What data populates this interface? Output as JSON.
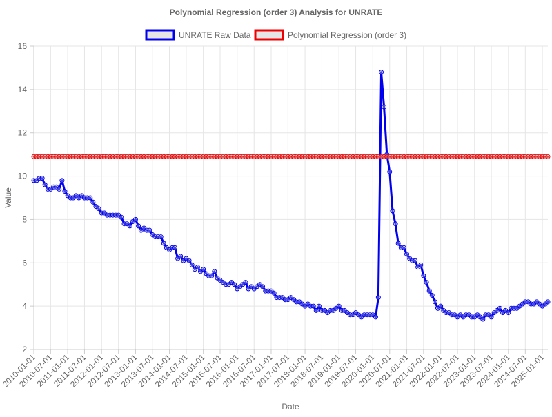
{
  "chart_data": {
    "type": "line",
    "title": "Polynomial Regression (order 3) Analysis for UNRATE",
    "xlabel": "Date",
    "ylabel": "Value",
    "ylim": [
      2,
      16
    ],
    "yticks": [
      2,
      4,
      6,
      8,
      10,
      12,
      14,
      16
    ],
    "grid": true,
    "legend_position": "top-center",
    "x": [
      "2010-01-01",
      "2010-02-01",
      "2010-03-01",
      "2010-04-01",
      "2010-05-01",
      "2010-06-01",
      "2010-07-01",
      "2010-08-01",
      "2010-09-01",
      "2010-10-01",
      "2010-11-01",
      "2010-12-01",
      "2011-01-01",
      "2011-02-01",
      "2011-03-01",
      "2011-04-01",
      "2011-05-01",
      "2011-06-01",
      "2011-07-01",
      "2011-08-01",
      "2011-09-01",
      "2011-10-01",
      "2011-11-01",
      "2011-12-01",
      "2012-01-01",
      "2012-02-01",
      "2012-03-01",
      "2012-04-01",
      "2012-05-01",
      "2012-06-01",
      "2012-07-01",
      "2012-08-01",
      "2012-09-01",
      "2012-10-01",
      "2012-11-01",
      "2012-12-01",
      "2013-01-01",
      "2013-02-01",
      "2013-03-01",
      "2013-04-01",
      "2013-05-01",
      "2013-06-01",
      "2013-07-01",
      "2013-08-01",
      "2013-09-01",
      "2013-10-01",
      "2013-11-01",
      "2013-12-01",
      "2014-01-01",
      "2014-02-01",
      "2014-03-01",
      "2014-04-01",
      "2014-05-01",
      "2014-06-01",
      "2014-07-01",
      "2014-08-01",
      "2014-09-01",
      "2014-10-01",
      "2014-11-01",
      "2014-12-01",
      "2015-01-01",
      "2015-02-01",
      "2015-03-01",
      "2015-04-01",
      "2015-05-01",
      "2015-06-01",
      "2015-07-01",
      "2015-08-01",
      "2015-09-01",
      "2015-10-01",
      "2015-11-01",
      "2015-12-01",
      "2016-01-01",
      "2016-02-01",
      "2016-03-01",
      "2016-04-01",
      "2016-05-01",
      "2016-06-01",
      "2016-07-01",
      "2016-08-01",
      "2016-09-01",
      "2016-10-01",
      "2016-11-01",
      "2016-12-01",
      "2017-01-01",
      "2017-02-01",
      "2017-03-01",
      "2017-04-01",
      "2017-05-01",
      "2017-06-01",
      "2017-07-01",
      "2017-08-01",
      "2017-09-01",
      "2017-10-01",
      "2017-11-01",
      "2017-12-01",
      "2018-01-01",
      "2018-02-01",
      "2018-03-01",
      "2018-04-01",
      "2018-05-01",
      "2018-06-01",
      "2018-07-01",
      "2018-08-01",
      "2018-09-01",
      "2018-10-01",
      "2018-11-01",
      "2018-12-01",
      "2019-01-01",
      "2019-02-01",
      "2019-03-01",
      "2019-04-01",
      "2019-05-01",
      "2019-06-01",
      "2019-07-01",
      "2019-08-01",
      "2019-09-01",
      "2019-10-01",
      "2019-11-01",
      "2019-12-01",
      "2020-01-01",
      "2020-02-01",
      "2020-03-01",
      "2020-04-01",
      "2020-05-01",
      "2020-06-01",
      "2020-07-01",
      "2020-08-01",
      "2020-09-01",
      "2020-10-01",
      "2020-11-01",
      "2020-12-01",
      "2021-01-01",
      "2021-02-01",
      "2021-03-01",
      "2021-04-01",
      "2021-05-01",
      "2021-06-01",
      "2021-07-01",
      "2021-08-01",
      "2021-09-01",
      "2021-10-01",
      "2021-11-01",
      "2021-12-01",
      "2022-01-01",
      "2022-02-01",
      "2022-03-01",
      "2022-04-01",
      "2022-05-01",
      "2022-06-01",
      "2022-07-01",
      "2022-08-01",
      "2022-09-01",
      "2022-10-01",
      "2022-11-01",
      "2022-12-01",
      "2023-01-01",
      "2023-02-01",
      "2023-03-01",
      "2023-04-01",
      "2023-05-01",
      "2023-06-01",
      "2023-07-01",
      "2023-08-01",
      "2023-09-01",
      "2023-10-01",
      "2023-11-01",
      "2023-12-01",
      "2024-01-01",
      "2024-02-01",
      "2024-03-01",
      "2024-04-01",
      "2024-05-01",
      "2024-06-01",
      "2024-07-01",
      "2024-08-01",
      "2024-09-01",
      "2024-10-01",
      "2024-11-01",
      "2024-12-01",
      "2025-01-01",
      "2025-02-01",
      "2025-03-01"
    ],
    "x_tick_labels": [
      "2010-01-01",
      "2010-07-01",
      "2011-01-01",
      "2011-07-01",
      "2012-01-01",
      "2012-07-01",
      "2013-01-01",
      "2013-07-01",
      "2014-01-01",
      "2014-07-01",
      "2015-01-01",
      "2015-07-01",
      "2016-01-01",
      "2016-07-01",
      "2017-01-01",
      "2017-07-01",
      "2018-01-01",
      "2018-07-01",
      "2019-01-01",
      "2019-07-01",
      "2020-01-01",
      "2020-07-01",
      "2021-01-01",
      "2021-07-01",
      "2022-01-01",
      "2022-07-01",
      "2023-01-01",
      "2023-07-01",
      "2024-01-01",
      "2024-07-01",
      "2025-01-01"
    ],
    "series": [
      {
        "name": "UNRATE Raw Data",
        "color": "#0000ee",
        "values": [
          9.8,
          9.8,
          9.9,
          9.9,
          9.6,
          9.4,
          9.4,
          9.5,
          9.5,
          9.4,
          9.8,
          9.3,
          9.1,
          9.0,
          9.0,
          9.1,
          9.0,
          9.1,
          9.0,
          9.0,
          9.0,
          8.8,
          8.6,
          8.5,
          8.3,
          8.3,
          8.2,
          8.2,
          8.2,
          8.2,
          8.2,
          8.1,
          7.8,
          7.8,
          7.7,
          7.9,
          8.0,
          7.7,
          7.5,
          7.6,
          7.5,
          7.5,
          7.3,
          7.2,
          7.2,
          7.2,
          6.9,
          6.7,
          6.6,
          6.7,
          6.7,
          6.2,
          6.3,
          6.1,
          6.2,
          6.1,
          5.9,
          5.7,
          5.8,
          5.6,
          5.7,
          5.5,
          5.4,
          5.4,
          5.6,
          5.3,
          5.2,
          5.1,
          5.0,
          5.0,
          5.1,
          5.0,
          4.8,
          4.9,
          5.0,
          5.1,
          4.8,
          4.9,
          4.8,
          4.9,
          5.0,
          4.9,
          4.7,
          4.7,
          4.7,
          4.6,
          4.4,
          4.4,
          4.4,
          4.3,
          4.3,
          4.4,
          4.3,
          4.2,
          4.2,
          4.1,
          4.0,
          4.1,
          4.0,
          4.0,
          3.8,
          4.0,
          3.8,
          3.8,
          3.7,
          3.8,
          3.8,
          3.9,
          4.0,
          3.8,
          3.8,
          3.7,
          3.6,
          3.6,
          3.7,
          3.6,
          3.5,
          3.6,
          3.6,
          3.6,
          3.6,
          3.5,
          4.4,
          14.8,
          13.2,
          11.0,
          10.2,
          8.4,
          7.8,
          6.9,
          6.7,
          6.7,
          6.4,
          6.2,
          6.1,
          6.1,
          5.8,
          5.9,
          5.4,
          5.1,
          4.7,
          4.5,
          4.2,
          3.9,
          4.0,
          3.8,
          3.7,
          3.7,
          3.6,
          3.6,
          3.5,
          3.6,
          3.5,
          3.6,
          3.6,
          3.5,
          3.5,
          3.6,
          3.5,
          3.4,
          3.6,
          3.6,
          3.5,
          3.7,
          3.8,
          3.9,
          3.7,
          3.8,
          3.7,
          3.9,
          3.9,
          3.9,
          4.0,
          4.1,
          4.2,
          4.2,
          4.1,
          4.1,
          4.2,
          4.1,
          4.0,
          4.1,
          4.2
        ]
      },
      {
        "name": "Polynomial Regression (order 3)",
        "color": "#ee0000",
        "constant_value": 10.9
      }
    ]
  }
}
